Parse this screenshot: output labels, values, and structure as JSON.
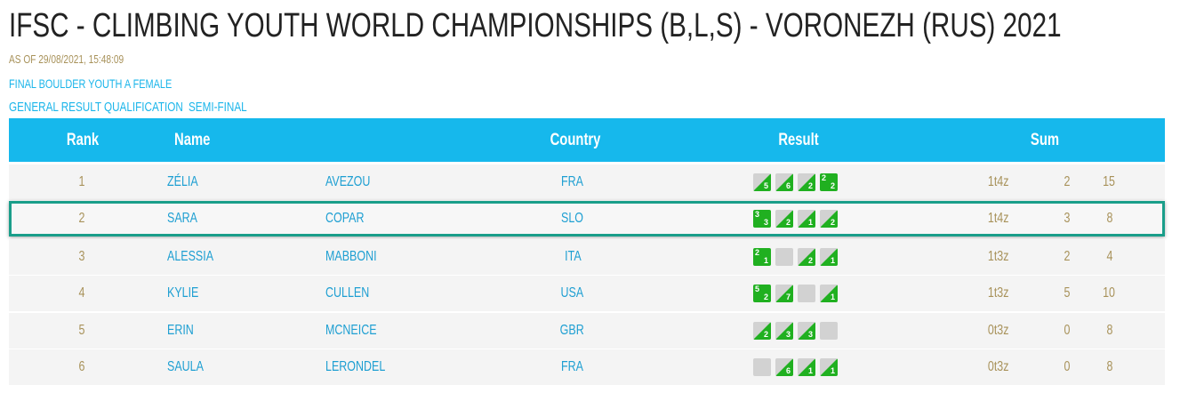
{
  "header": {
    "title": "IFSC - CLIMBING YOUTH WORLD CHAMPIONSHIPS (B,L,S) - VORONEZH (RUS) 2021",
    "as_of": "AS OF 29/08/2021, 15:48:09",
    "event": "FINAL BOULDER YOUTH A FEMALE",
    "tabs": [
      "GENERAL RESULT",
      "QUALIFICATION",
      "SEMI-FINAL"
    ]
  },
  "table": {
    "columns": [
      "Rank",
      "Name",
      "Country",
      "Result",
      "Sum"
    ],
    "selected_row": 1,
    "rows": [
      {
        "rank": "1",
        "first_name": "ZÉLIA",
        "last_name": "AVEZOU",
        "country": "FRA",
        "result": [
          {
            "status": "zone",
            "zone": "5"
          },
          {
            "status": "zone",
            "zone": "6"
          },
          {
            "status": "zone",
            "zone": "2"
          },
          {
            "status": "top",
            "top": "2",
            "zone": "2"
          }
        ],
        "sum": "1t4z",
        "top_attempts": "2",
        "zone_attempts": "15"
      },
      {
        "rank": "2",
        "first_name": "SARA",
        "last_name": "COPAR",
        "country": "SLO",
        "result": [
          {
            "status": "top",
            "top": "3",
            "zone": "3"
          },
          {
            "status": "zone",
            "zone": "2"
          },
          {
            "status": "zone",
            "zone": "1"
          },
          {
            "status": "zone",
            "zone": "2"
          }
        ],
        "sum": "1t4z",
        "top_attempts": "3",
        "zone_attempts": "8"
      },
      {
        "rank": "3",
        "first_name": "ALESSIA",
        "last_name": "MABBONI",
        "country": "ITA",
        "result": [
          {
            "status": "top",
            "top": "2",
            "zone": "1"
          },
          {
            "status": "none"
          },
          {
            "status": "zone",
            "zone": "2"
          },
          {
            "status": "zone",
            "zone": "1"
          }
        ],
        "sum": "1t3z",
        "top_attempts": "2",
        "zone_attempts": "4"
      },
      {
        "rank": "4",
        "first_name": "KYLIE",
        "last_name": "CULLEN",
        "country": "USA",
        "result": [
          {
            "status": "top",
            "top": "5",
            "zone": "2"
          },
          {
            "status": "zone",
            "zone": "7"
          },
          {
            "status": "none"
          },
          {
            "status": "zone",
            "zone": "1"
          }
        ],
        "sum": "1t3z",
        "top_attempts": "5",
        "zone_attempts": "10"
      },
      {
        "rank": "5",
        "first_name": "ERIN",
        "last_name": "MCNEICE",
        "country": "GBR",
        "result": [
          {
            "status": "zone",
            "zone": "2"
          },
          {
            "status": "zone",
            "zone": "3"
          },
          {
            "status": "zone",
            "zone": "3"
          },
          {
            "status": "none"
          }
        ],
        "sum": "0t3z",
        "top_attempts": "0",
        "zone_attempts": "8"
      },
      {
        "rank": "6",
        "first_name": "SAULA",
        "last_name": "LERONDEL",
        "country": "FRA",
        "result": [
          {
            "status": "none"
          },
          {
            "status": "zone",
            "zone": "6"
          },
          {
            "status": "zone",
            "zone": "1"
          },
          {
            "status": "zone",
            "zone": "1"
          }
        ],
        "sum": "0t3z",
        "top_attempts": "0",
        "zone_attempts": "8"
      }
    ]
  }
}
